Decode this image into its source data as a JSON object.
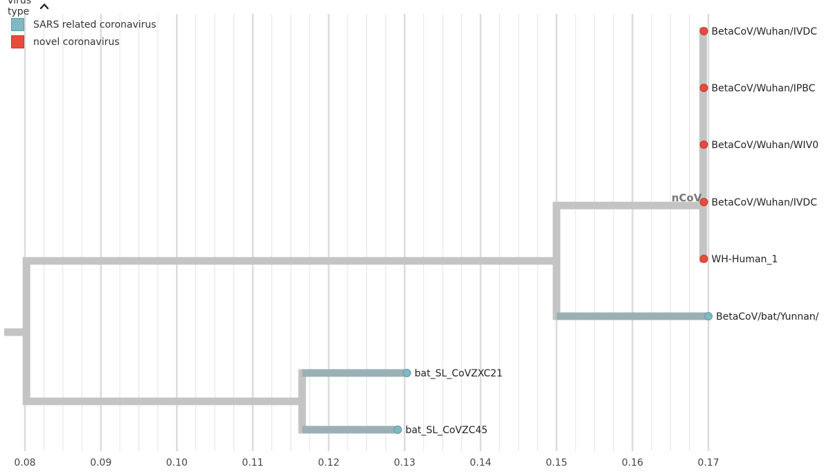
{
  "legend": {
    "title": "virus type",
    "items": [
      {
        "label": "SARS related coronavirus",
        "color": "#7fb9c4"
      },
      {
        "label": "novel coronavirus",
        "color": "#e84a3c"
      }
    ]
  },
  "colors": {
    "branch_default": "#c4c4c4",
    "branch_sars": "#9bb0b5",
    "grid": "#e3e3e3",
    "grid_major": "#dcdcdc"
  },
  "chart_data": {
    "type": "phylogenetic-tree",
    "x_axis": {
      "ticks": [
        "0.08",
        "0.09",
        "0.10",
        "0.11",
        "0.12",
        "0.13",
        "0.14",
        "0.15",
        "0.16",
        "0.17"
      ],
      "range": [
        0.08,
        0.17
      ]
    },
    "tips": [
      {
        "name": "BetaCoV/Wuhan/IVDC",
        "divergence": 0.1694,
        "type": "novel coronavirus"
      },
      {
        "name": "BetaCoV/Wuhan/IPBC",
        "divergence": 0.1694,
        "type": "novel coronavirus"
      },
      {
        "name": "BetaCoV/Wuhan/WIV0",
        "divergence": 0.1694,
        "type": "novel coronavirus"
      },
      {
        "name": "BetaCoV/Wuhan/IVDC",
        "divergence": 0.1694,
        "type": "novel coronavirus"
      },
      {
        "name": "WH-Human_1",
        "divergence": 0.1694,
        "type": "novel coronavirus"
      },
      {
        "name": "BetaCoV/bat/Yunnan/",
        "divergence": 0.17,
        "type": "SARS related coronavirus"
      },
      {
        "name": "bat_SL_CoVZXC21",
        "divergence": 0.1303,
        "type": "SARS related coronavirus"
      },
      {
        "name": "bat_SL_CoVZC45",
        "divergence": 0.1291,
        "type": "SARS related coronavirus"
      }
    ],
    "internal_nodes": [
      {
        "id": "root",
        "divergence": 0.0802
      },
      {
        "id": "upper",
        "divergence": 0.15
      },
      {
        "id": "ncov",
        "divergence": 0.1693,
        "label": "nCoV"
      },
      {
        "id": "lower",
        "divergence": 0.1165
      }
    ]
  }
}
